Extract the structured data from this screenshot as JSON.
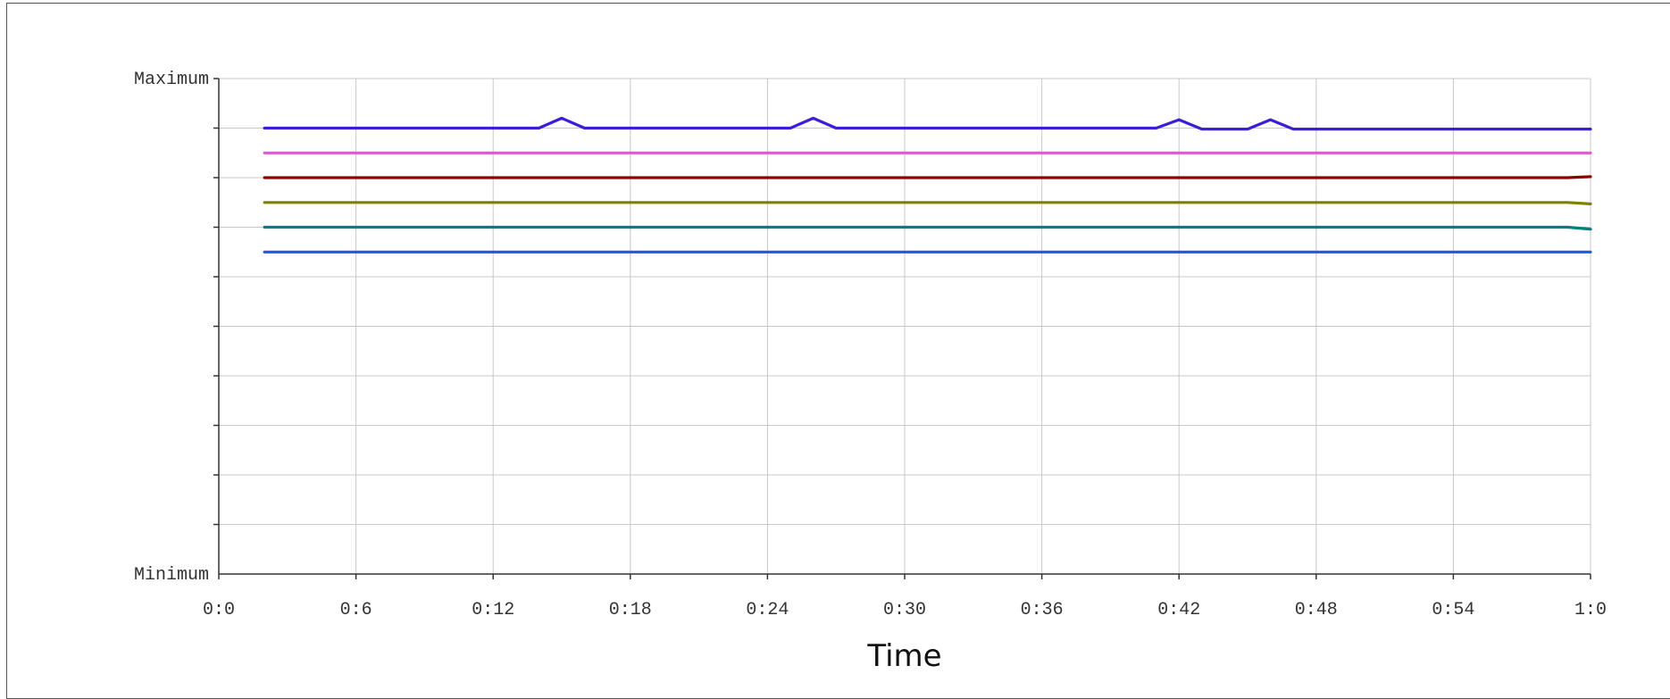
{
  "chart_data": {
    "type": "line",
    "title": "",
    "xlabel": "Time",
    "ylabel": "",
    "x_ticks": [
      "0:0",
      "0:6",
      "0:12",
      "0:18",
      "0:24",
      "0:30",
      "0:36",
      "0:42",
      "0:48",
      "0:54",
      "1:0"
    ],
    "x_range_seconds": [
      0,
      60
    ],
    "y_labels": {
      "max": "Maximum",
      "min": "Minimum"
    },
    "y_range": [
      0,
      10
    ],
    "y_gridlines": 10,
    "x_gridlines": true,
    "legend": "none",
    "x_seconds": [
      2,
      3,
      4,
      5,
      6,
      7,
      8,
      9,
      10,
      11,
      12,
      13,
      14,
      15,
      16,
      17,
      18,
      19,
      20,
      21,
      22,
      23,
      24,
      25,
      26,
      27,
      28,
      29,
      30,
      31,
      32,
      33,
      34,
      35,
      36,
      37,
      38,
      39,
      40,
      41,
      42,
      43,
      44,
      45,
      46,
      47,
      48,
      49,
      50,
      51,
      52,
      53,
      54,
      55,
      56,
      57,
      58,
      59,
      60
    ],
    "series": [
      {
        "color": "#3a1fd6",
        "values": [
          9.0,
          9.0,
          9.0,
          9.0,
          9.0,
          9.0,
          9.0,
          9.0,
          9.0,
          9.0,
          9.0,
          9.0,
          9.0,
          9.2,
          9.0,
          9.0,
          9.0,
          9.0,
          9.0,
          9.0,
          9.0,
          9.0,
          9.0,
          9.0,
          9.2,
          9.0,
          9.0,
          9.0,
          9.0,
          9.0,
          9.0,
          9.0,
          9.0,
          9.0,
          9.0,
          9.0,
          9.0,
          9.0,
          9.0,
          9.0,
          9.17,
          8.98,
          8.98,
          8.98,
          9.17,
          8.98,
          8.98,
          8.98,
          8.98,
          8.98,
          8.98,
          8.98,
          8.98,
          8.98,
          8.98,
          8.98,
          8.98,
          8.98,
          8.98
        ]
      },
      {
        "color": "#d55fc4",
        "values": [
          8.5,
          8.5,
          8.5,
          8.5,
          8.5,
          8.5,
          8.5,
          8.5,
          8.5,
          8.5,
          8.5,
          8.5,
          8.5,
          8.5,
          8.5,
          8.5,
          8.5,
          8.5,
          8.5,
          8.5,
          8.5,
          8.5,
          8.5,
          8.5,
          8.5,
          8.5,
          8.5,
          8.5,
          8.5,
          8.5,
          8.5,
          8.5,
          8.5,
          8.5,
          8.5,
          8.5,
          8.5,
          8.5,
          8.5,
          8.5,
          8.5,
          8.5,
          8.5,
          8.5,
          8.5,
          8.5,
          8.5,
          8.5,
          8.5,
          8.5,
          8.5,
          8.5,
          8.5,
          8.5,
          8.5,
          8.5,
          8.5,
          8.5,
          8.5
        ]
      },
      {
        "color": "#8b0000",
        "values": [
          8.0,
          8.0,
          8.0,
          8.0,
          8.0,
          8.0,
          8.0,
          8.0,
          8.0,
          8.0,
          8.0,
          8.0,
          8.0,
          8.0,
          8.0,
          8.0,
          8.0,
          8.0,
          8.0,
          8.0,
          8.0,
          8.0,
          8.0,
          8.0,
          8.0,
          8.0,
          8.0,
          8.0,
          8.0,
          8.0,
          8.0,
          8.0,
          8.0,
          8.0,
          8.0,
          8.0,
          8.0,
          8.0,
          8.0,
          8.0,
          8.0,
          8.0,
          8.0,
          8.0,
          8.0,
          8.0,
          8.0,
          8.0,
          8.0,
          8.0,
          8.0,
          8.0,
          8.0,
          8.0,
          8.0,
          8.0,
          8.0,
          8.0,
          8.02
        ]
      },
      {
        "color": "#808000",
        "values": [
          7.5,
          7.5,
          7.5,
          7.5,
          7.5,
          7.5,
          7.5,
          7.5,
          7.5,
          7.5,
          7.5,
          7.5,
          7.5,
          7.5,
          7.5,
          7.5,
          7.5,
          7.5,
          7.5,
          7.5,
          7.5,
          7.5,
          7.5,
          7.5,
          7.5,
          7.5,
          7.5,
          7.5,
          7.5,
          7.5,
          7.5,
          7.5,
          7.5,
          7.5,
          7.5,
          7.5,
          7.5,
          7.5,
          7.5,
          7.5,
          7.5,
          7.5,
          7.5,
          7.5,
          7.5,
          7.5,
          7.5,
          7.5,
          7.5,
          7.5,
          7.5,
          7.5,
          7.5,
          7.5,
          7.5,
          7.5,
          7.5,
          7.5,
          7.47
        ]
      },
      {
        "color": "#008080",
        "values": [
          7.0,
          7.0,
          7.0,
          7.0,
          7.0,
          7.0,
          7.0,
          7.0,
          7.0,
          7.0,
          7.0,
          7.0,
          7.0,
          7.0,
          7.0,
          7.0,
          7.0,
          7.0,
          7.0,
          7.0,
          7.0,
          7.0,
          7.0,
          7.0,
          7.0,
          7.0,
          7.0,
          7.0,
          7.0,
          7.0,
          7.0,
          7.0,
          7.0,
          7.0,
          7.0,
          7.0,
          7.0,
          7.0,
          7.0,
          7.0,
          7.0,
          7.0,
          7.0,
          7.0,
          7.0,
          7.0,
          7.0,
          7.0,
          7.0,
          7.0,
          7.0,
          7.0,
          7.0,
          7.0,
          7.0,
          7.0,
          7.0,
          7.0,
          6.96
        ]
      },
      {
        "color": "#1f57e6",
        "values": [
          6.5,
          6.5,
          6.5,
          6.5,
          6.5,
          6.5,
          6.5,
          6.5,
          6.5,
          6.5,
          6.5,
          6.5,
          6.5,
          6.5,
          6.5,
          6.5,
          6.5,
          6.5,
          6.5,
          6.5,
          6.5,
          6.5,
          6.5,
          6.5,
          6.5,
          6.5,
          6.5,
          6.5,
          6.5,
          6.5,
          6.5,
          6.5,
          6.5,
          6.5,
          6.5,
          6.5,
          6.5,
          6.5,
          6.5,
          6.5,
          6.5,
          6.5,
          6.5,
          6.5,
          6.5,
          6.5,
          6.5,
          6.5,
          6.5,
          6.5,
          6.5,
          6.5,
          6.5,
          6.5,
          6.5,
          6.5,
          6.5,
          6.5,
          6.5
        ]
      }
    ]
  }
}
